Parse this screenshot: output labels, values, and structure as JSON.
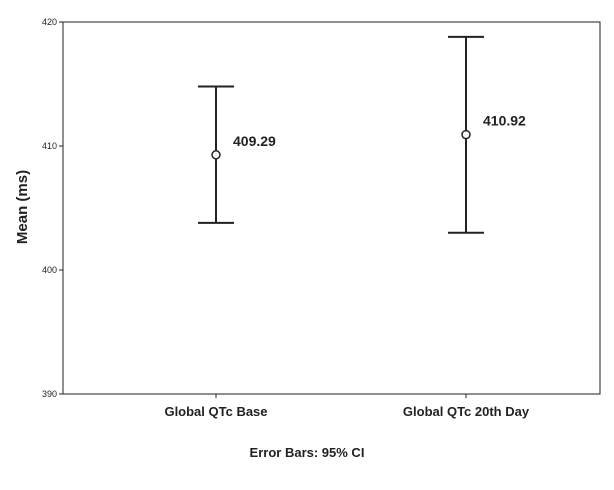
{
  "chart_data": {
    "type": "scatter",
    "title": "",
    "xlabel": "",
    "ylabel": "Mean (ms)",
    "ylim": [
      390,
      420
    ],
    "yticks": [
      390,
      400,
      410,
      420
    ],
    "categories": [
      "Global QTc Base",
      "Global QTc 20th Day"
    ],
    "points": [
      {
        "category": "Global QTc Base",
        "mean": 409.29,
        "ci_low": 403.8,
        "ci_high": 414.8,
        "label": "409.29"
      },
      {
        "category": "Global QTc 20th Day",
        "mean": 410.92,
        "ci_low": 403.0,
        "ci_high": 418.8,
        "label": "410.92"
      }
    ],
    "grid": false,
    "footnote": "Error Bars: 95% CI"
  }
}
